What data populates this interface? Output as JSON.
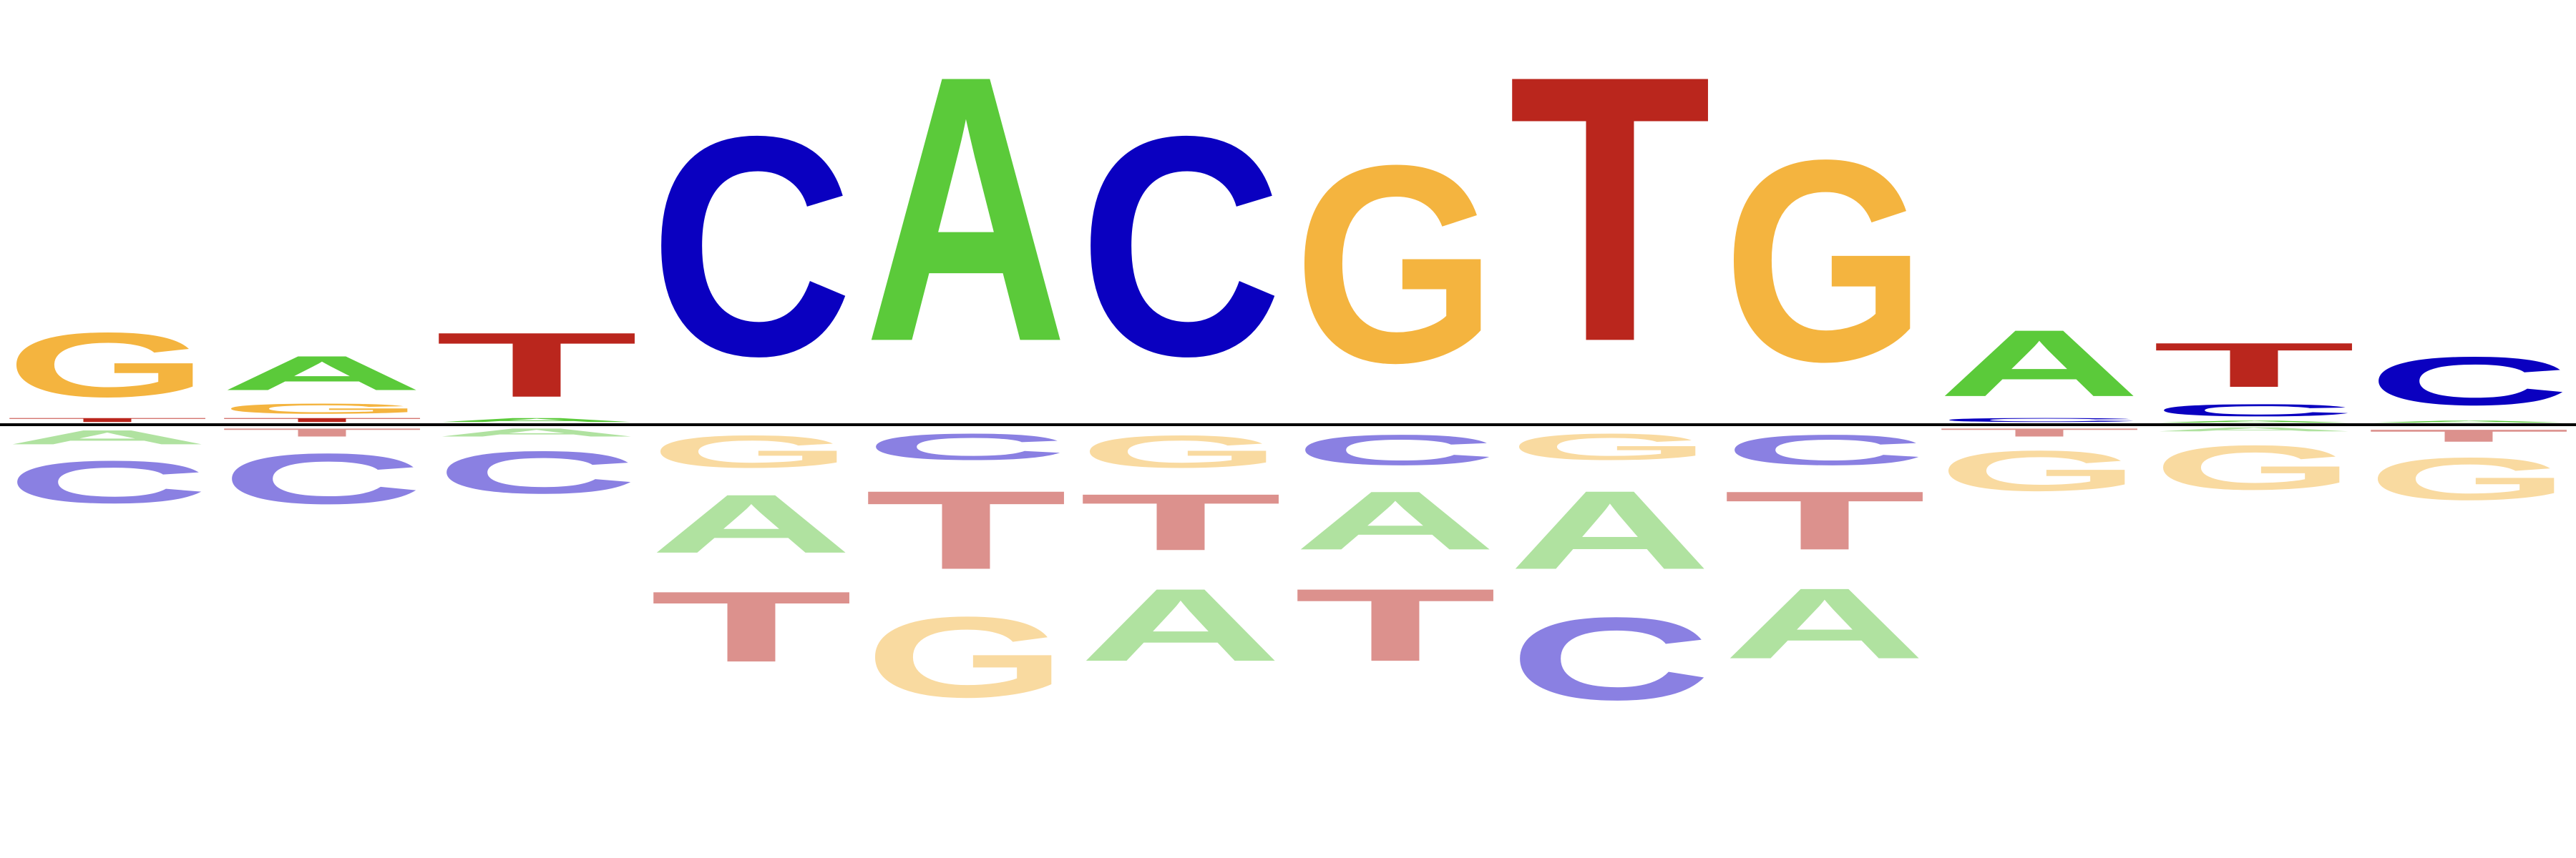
{
  "colors": {
    "A": "#5BCA3A",
    "C": "#0A00C0",
    "G": "#F4B43F",
    "T": "#BA261D",
    "A_depleted": "#B0E2A0",
    "C_depleted": "#8A80E2",
    "G_depleted": "#F9DAA0",
    "T_depleted": "#DC918D",
    "axis": "#000000"
  },
  "chart_data": {
    "type": "sequence-logo",
    "positions": [
      {
        "enriched": [
          {
            "base": "T",
            "h": 0.02
          },
          {
            "base": "G",
            "h": 0.32
          }
        ],
        "depleted": [
          {
            "base": "A",
            "h": 0.07
          },
          {
            "base": "C",
            "h": 0.21
          }
        ]
      },
      {
        "enriched": [
          {
            "base": "T",
            "h": 0.02
          },
          {
            "base": "G",
            "h": 0.05
          },
          {
            "base": "A",
            "h": 0.17
          }
        ],
        "depleted": [
          {
            "base": "T",
            "h": 0.04
          },
          {
            "base": "C",
            "h": 0.25
          }
        ]
      },
      {
        "enriched": [
          {
            "base": "A",
            "h": 0.02
          },
          {
            "base": "T",
            "h": 0.32
          }
        ],
        "depleted": [
          {
            "base": "A",
            "h": 0.04
          },
          {
            "base": "C",
            "h": 0.21
          }
        ]
      },
      {
        "enriched": [
          {
            "base": "C",
            "h": 1.09
          }
        ],
        "depleted": [
          {
            "base": "G",
            "h": 0.16
          },
          {
            "base": "A",
            "h": 0.29
          },
          {
            "base": "T",
            "h": 0.35
          }
        ]
      },
      {
        "enriched": [
          {
            "base": "A",
            "h": 1.32
          }
        ],
        "depleted": [
          {
            "base": "C",
            "h": 0.13
          },
          {
            "base": "T",
            "h": 0.39
          },
          {
            "base": "G",
            "h": 0.4
          }
        ]
      },
      {
        "enriched": [
          {
            "base": "C",
            "h": 1.09
          }
        ],
        "depleted": [
          {
            "base": "G",
            "h": 0.16
          },
          {
            "base": "T",
            "h": 0.28
          },
          {
            "base": "A",
            "h": 0.36
          }
        ]
      },
      {
        "enriched": [
          {
            "base": "G",
            "h": 0.98
          }
        ],
        "depleted": [
          {
            "base": "C",
            "h": 0.15
          },
          {
            "base": "A",
            "h": 0.29
          },
          {
            "base": "T",
            "h": 0.36
          }
        ]
      },
      {
        "enriched": [
          {
            "base": "T",
            "h": 1.32
          }
        ],
        "depleted": [
          {
            "base": "G",
            "h": 0.13
          },
          {
            "base": "A",
            "h": 0.39
          },
          {
            "base": "C",
            "h": 0.41
          }
        ]
      },
      {
        "enriched": [
          {
            "base": "G",
            "h": 1.0
          }
        ],
        "depleted": [
          {
            "base": "C",
            "h": 0.15
          },
          {
            "base": "T",
            "h": 0.29
          },
          {
            "base": "A",
            "h": 0.35
          }
        ]
      },
      {
        "enriched": [
          {
            "base": "C",
            "h": 0.02
          },
          {
            "base": "A",
            "h": 0.33
          }
        ],
        "depleted": [
          {
            "base": "T",
            "h": 0.04
          },
          {
            "base": "G",
            "h": 0.2
          }
        ]
      },
      {
        "enriched": [
          {
            "base": "A",
            "h": 0.01
          },
          {
            "base": "C",
            "h": 0.06
          },
          {
            "base": "T",
            "h": 0.22
          }
        ],
        "depleted": [
          {
            "base": "A",
            "h": 0.02
          },
          {
            "base": "G",
            "h": 0.22
          }
        ]
      },
      {
        "enriched": [
          {
            "base": "A",
            "h": 0.01
          },
          {
            "base": "C",
            "h": 0.24
          }
        ],
        "depleted": [
          {
            "base": "T",
            "h": 0.06
          },
          {
            "base": "G",
            "h": 0.21
          }
        ]
      }
    ]
  }
}
